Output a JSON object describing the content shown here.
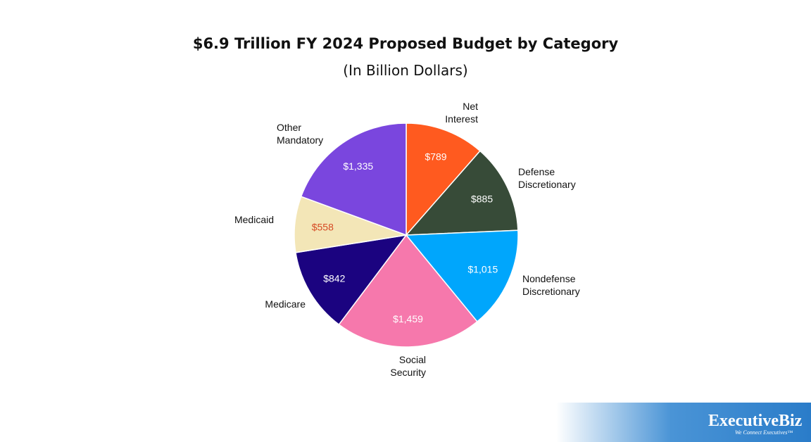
{
  "chart_data": {
    "type": "pie",
    "title": "$6.9 Trillion FY 2024 Proposed Budget by Category",
    "subtitle": "(In Billion Dollars)",
    "slices": [
      {
        "label": [
          "Net",
          "Interest"
        ],
        "value": 789,
        "value_label": "$789",
        "color": "#ff5a1f",
        "value_color": "#ffffff"
      },
      {
        "label": [
          "Defense",
          "Discretionary"
        ],
        "value": 885,
        "value_label": "$885",
        "color": "#374b38",
        "value_color": "#ffffff"
      },
      {
        "label": [
          "Nondefense",
          "Discretionary"
        ],
        "value": 1015,
        "value_label": "$1,015",
        "color": "#00a6fc",
        "value_color": "#ffffff"
      },
      {
        "label": [
          "Social",
          "Security"
        ],
        "value": 1459,
        "value_label": "$1,459",
        "color": "#f678ac",
        "value_color": "#ffffff"
      },
      {
        "label": [
          "Medicare"
        ],
        "value": 842,
        "value_label": "$842",
        "color": "#1b0380",
        "value_color": "#ffffff"
      },
      {
        "label": [
          "Medicaid"
        ],
        "value": 558,
        "value_label": "$558",
        "color": "#f3e6b7",
        "value_color": "#d64a24"
      },
      {
        "label": [
          "Other",
          "Mandatory"
        ],
        "value": 1335,
        "value_label": "$1,335",
        "color": "#7a46de",
        "value_color": "#ffffff"
      }
    ]
  },
  "branding": {
    "logo": "ExecutiveBiz",
    "tagline": "We Connect Executives™"
  }
}
